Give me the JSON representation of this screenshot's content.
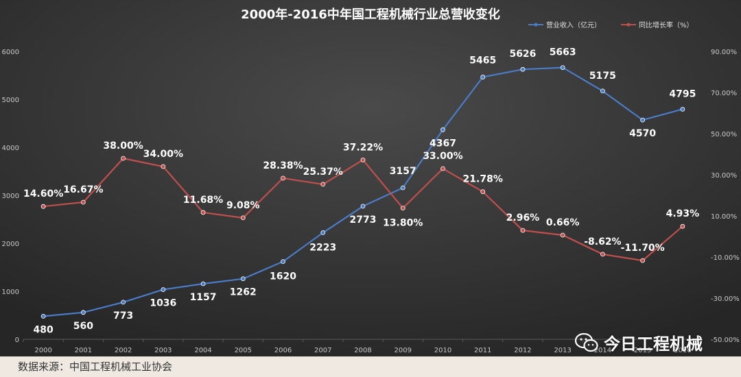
{
  "chart_data": {
    "type": "line",
    "title": "2000年-2016中年国工程机械行业总营收变化",
    "categories": [
      "2000",
      "2001",
      "2002",
      "2003",
      "2004",
      "2005",
      "2006",
      "2007",
      "2008",
      "2009",
      "2010",
      "2011",
      "2012",
      "2013",
      "2014",
      "2015",
      "2016"
    ],
    "series": [
      {
        "name": "营业收入（亿元）",
        "axis": "left",
        "color": "#4a7cc7",
        "values": [
          480,
          560,
          773,
          1036,
          1157,
          1262,
          1620,
          2223,
          2773,
          3157,
          4367,
          5465,
          5626,
          5663,
          5175,
          4570,
          4795
        ],
        "labels": [
          "480",
          "560",
          "773",
          "1036",
          "1157",
          "1262",
          "1620",
          "2223",
          "2773",
          "3157",
          "4367",
          "5465",
          "5626",
          "5663",
          "5175",
          "4570",
          "4795"
        ]
      },
      {
        "name": "同比增长率（%）",
        "axis": "right",
        "color": "#c0504d",
        "values": [
          14.6,
          16.67,
          38.0,
          34.0,
          11.68,
          9.08,
          28.38,
          25.37,
          37.22,
          13.8,
          33.0,
          21.78,
          2.96,
          0.66,
          -8.62,
          -11.7,
          4.93
        ],
        "labels": [
          "14.60%",
          "16.67%",
          "38.00%",
          "34.00%",
          "11.68%",
          "9.08%",
          "28.38%",
          "25.37%",
          "37.22%",
          "13.80%",
          "33.00%",
          "21.78%",
          "2.96%",
          "0.66%",
          "-8.62%",
          "-11.70%",
          "4.93%"
        ]
      }
    ],
    "y_left": {
      "min": 0,
      "max": 6000,
      "ticks": [
        "0",
        "1000",
        "2000",
        "3000",
        "4000",
        "5000",
        "6000"
      ]
    },
    "y_right": {
      "min": -50,
      "max": 90,
      "ticks": [
        "-50.00%",
        "-30.00%",
        "-10.00%",
        "10.00%",
        "30.00%",
        "50.00%",
        "70.00%",
        "90.00%"
      ]
    },
    "legend_position": "top-right",
    "grid": false
  },
  "footer": {
    "source": "数据来源：中国工程机械工业协会"
  },
  "watermark": {
    "text": "今日工程机械"
  },
  "colors": {
    "background": "#2b2b2b",
    "text": "#ffffff",
    "axis_text": "#c8c8c8"
  }
}
